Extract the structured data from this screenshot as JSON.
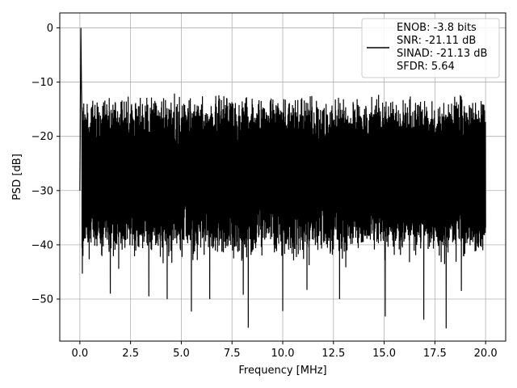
{
  "chart_data": {
    "type": "line",
    "xlabel": "Frequency [MHz]",
    "ylabel": "PSD [dB]",
    "xlim": [
      -0.99,
      20.99
    ],
    "ylim": [
      -57.75,
      2.75
    ],
    "xticks": [
      0.0,
      2.5,
      5.0,
      7.5,
      10.0,
      12.5,
      15.0,
      17.5,
      20.0
    ],
    "xtick_labels": [
      "0.0",
      "2.5",
      "5.0",
      "7.5",
      "10.0",
      "12.5",
      "15.0",
      "17.5",
      "20.0"
    ],
    "yticks": [
      0,
      -10,
      -20,
      -30,
      -40,
      -50
    ],
    "ytick_labels": [
      "0",
      "−10",
      "−20",
      "−30",
      "−40",
      "−50"
    ],
    "grid": true,
    "legend_position": "top-right",
    "series": [
      {
        "name": "ENOB: -3.8 bits\nSNR: -21.11 dB\nSINAD: -21.13 dB\nSFDR: 5.64",
        "color": "#000000",
        "x_range": [
          0,
          20
        ],
        "peak": {
          "x": 0.05,
          "y": 0
        },
        "noise_band": {
          "upper_db": [
            -17,
            -12
          ],
          "lower_db": [
            -45,
            -32
          ]
        },
        "deep_nulls": [
          {
            "x": 0.12,
            "y": -45.3
          },
          {
            "x": 1.5,
            "y": -49
          },
          {
            "x": 3.4,
            "y": -49.5
          },
          {
            "x": 4.3,
            "y": -50
          },
          {
            "x": 5.5,
            "y": -48.5
          },
          {
            "x": 5.5,
            "y": -52.3
          },
          {
            "x": 6.4,
            "y": -50
          },
          {
            "x": 8.05,
            "y": -49.2
          },
          {
            "x": 8.3,
            "y": -55.3
          },
          {
            "x": 10.0,
            "y": -52.2
          },
          {
            "x": 11.2,
            "y": -48.3
          },
          {
            "x": 12.8,
            "y": -50
          },
          {
            "x": 15.05,
            "y": -53.2
          },
          {
            "x": 16.95,
            "y": -53.8
          },
          {
            "x": 18.05,
            "y": -55.4
          },
          {
            "x": 18.8,
            "y": -48.5
          }
        ]
      }
    ]
  }
}
